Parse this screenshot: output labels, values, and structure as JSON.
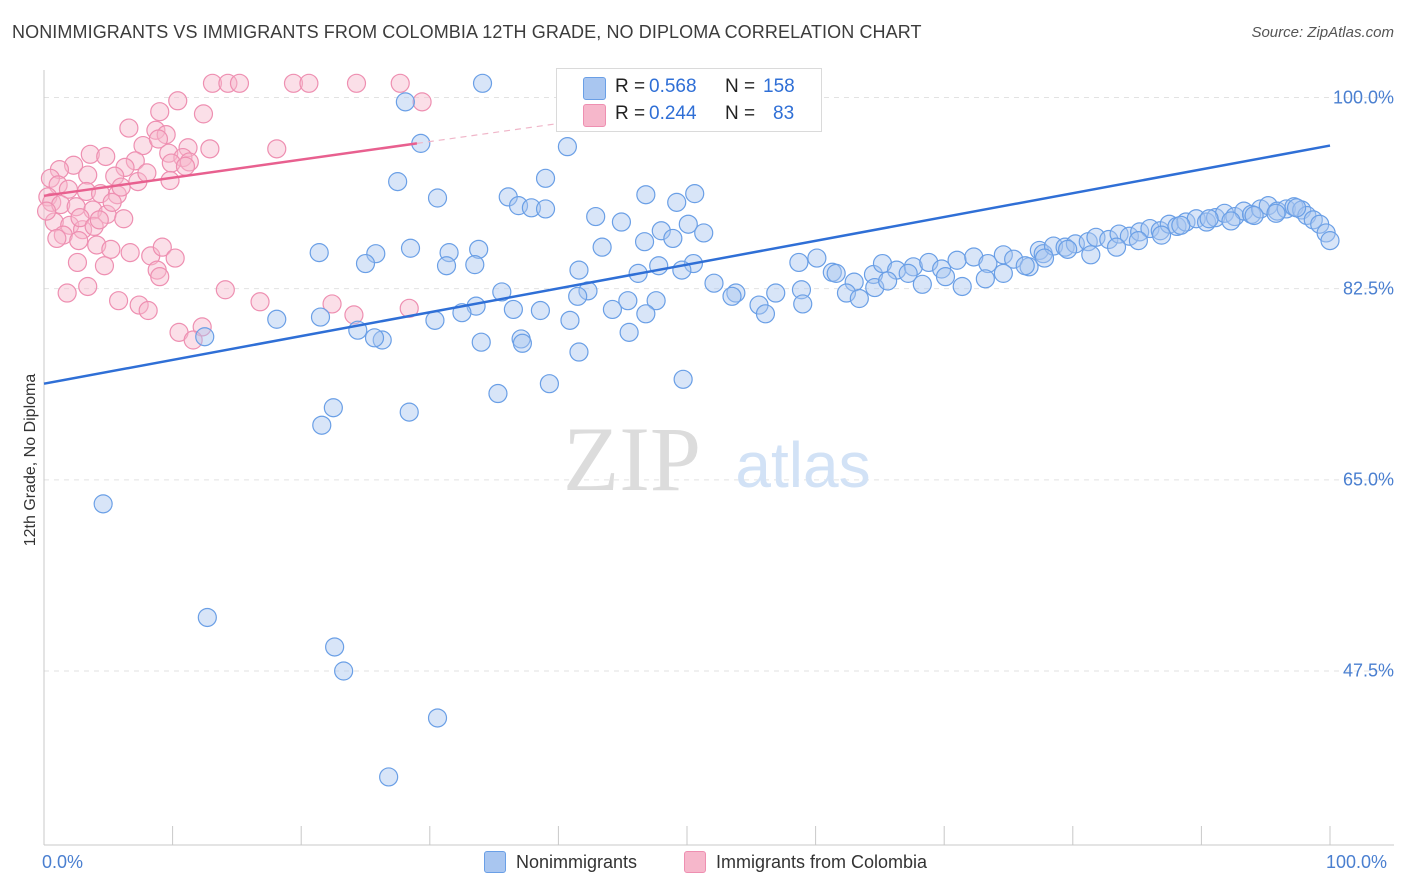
{
  "title": "NONIMMIGRANTS VS IMMIGRANTS FROM COLOMBIA 12TH GRADE, NO DIPLOMA CORRELATION CHART",
  "source": "Source: ZipAtlas.com",
  "watermark": {
    "zip": "ZIP",
    "atlas": "atlas"
  },
  "legend_stats": [
    {
      "r_label": "R =",
      "r_value": "0.568",
      "n_label": "N =",
      "n_value": "158",
      "color": "#a9c6f0"
    },
    {
      "r_label": "R =",
      "r_value": "0.244",
      "n_label": "N =",
      "n_value": "83",
      "color": "#f6b7cb"
    }
  ],
  "colors": {
    "blue": "#6a9fe6",
    "blue_line": "#2f6fd6",
    "pink": "#ee8fb1",
    "pink_line": "#e8608f",
    "tick_text": "#4a7fd0"
  },
  "chart_data": {
    "type": "scatter",
    "title": "NONIMMIGRANTS VS IMMIGRANTS FROM COLOMBIA 12TH GRADE, NO DIPLOMA CORRELATION CHART",
    "xlabel": "",
    "ylabel": "12th Grade, No Diploma",
    "xlim": [
      0,
      100
    ],
    "ylim": [
      31,
      102
    ],
    "x_tick_labels": [
      "0.0%",
      "100.0%"
    ],
    "y_ticks": [
      47.5,
      65.0,
      82.5,
      100.0
    ],
    "y_tick_labels": [
      "47.5%",
      "65.0%",
      "82.5%",
      "100.0%"
    ],
    "grid": "horizontal dashed",
    "legend_position": "bottom",
    "series": [
      {
        "name": "Nonimmigrants",
        "color": "#6a9fe6",
        "trend": {
          "x": [
            0,
            100
          ],
          "y": [
            73.8,
            95.6
          ]
        },
        "points": [
          [
            34.1,
            101.3
          ],
          [
            28.1,
            99.6
          ],
          [
            29.3,
            95.8
          ],
          [
            40.7,
            95.5
          ],
          [
            27.5,
            92.3
          ],
          [
            39.0,
            92.6
          ],
          [
            36.1,
            90.9
          ],
          [
            30.6,
            90.8
          ],
          [
            36.9,
            90.1
          ],
          [
            37.9,
            89.9
          ],
          [
            39.0,
            89.8
          ],
          [
            46.8,
            91.1
          ],
          [
            49.2,
            90.4
          ],
          [
            50.6,
            91.2
          ],
          [
            42.9,
            89.1
          ],
          [
            44.9,
            88.6
          ],
          [
            48.0,
            87.8
          ],
          [
            46.7,
            86.8
          ],
          [
            43.4,
            86.3
          ],
          [
            33.8,
            86.1
          ],
          [
            31.5,
            85.8
          ],
          [
            28.5,
            86.2
          ],
          [
            25.8,
            85.7
          ],
          [
            25.0,
            84.8
          ],
          [
            21.4,
            85.8
          ],
          [
            31.3,
            84.6
          ],
          [
            33.5,
            84.7
          ],
          [
            47.8,
            84.6
          ],
          [
            50.5,
            84.8
          ],
          [
            41.6,
            84.2
          ],
          [
            35.6,
            82.2
          ],
          [
            42.3,
            82.3
          ],
          [
            45.4,
            81.4
          ],
          [
            41.5,
            81.8
          ],
          [
            52.1,
            83.0
          ],
          [
            53.8,
            82.1
          ],
          [
            56.9,
            82.1
          ],
          [
            58.9,
            82.4
          ],
          [
            59.0,
            81.1
          ],
          [
            55.6,
            81.0
          ],
          [
            53.5,
            81.8
          ],
          [
            56.1,
            80.2
          ],
          [
            36.5,
            80.6
          ],
          [
            33.6,
            80.9
          ],
          [
            32.5,
            80.3
          ],
          [
            38.6,
            80.5
          ],
          [
            40.9,
            79.6
          ],
          [
            45.5,
            78.5
          ],
          [
            30.4,
            79.6
          ],
          [
            21.5,
            79.9
          ],
          [
            18.1,
            79.7
          ],
          [
            24.4,
            78.7
          ],
          [
            26.3,
            77.8
          ],
          [
            25.7,
            78.0
          ],
          [
            34.0,
            77.6
          ],
          [
            37.1,
            77.9
          ],
          [
            41.6,
            76.7
          ],
          [
            49.7,
            74.2
          ],
          [
            39.3,
            73.8
          ],
          [
            35.3,
            72.9
          ],
          [
            28.4,
            71.2
          ],
          [
            22.5,
            71.6
          ],
          [
            21.6,
            70.0
          ],
          [
            12.5,
            78.1
          ],
          [
            4.6,
            62.8
          ],
          [
            12.7,
            52.4
          ],
          [
            22.6,
            49.7
          ],
          [
            23.3,
            47.5
          ],
          [
            30.6,
            43.2
          ],
          [
            26.8,
            37.8
          ],
          [
            58.7,
            84.9
          ],
          [
            60.1,
            85.3
          ],
          [
            61.3,
            84.0
          ],
          [
            63.0,
            83.1
          ],
          [
            64.5,
            83.8
          ],
          [
            65.2,
            84.8
          ],
          [
            66.3,
            84.2
          ],
          [
            67.6,
            84.5
          ],
          [
            68.8,
            84.9
          ],
          [
            69.8,
            84.3
          ],
          [
            71.0,
            85.1
          ],
          [
            72.3,
            85.4
          ],
          [
            73.4,
            84.8
          ],
          [
            74.6,
            85.6
          ],
          [
            75.4,
            85.2
          ],
          [
            76.6,
            84.5
          ],
          [
            77.4,
            86.0
          ],
          [
            77.7,
            85.7
          ],
          [
            78.5,
            86.4
          ],
          [
            79.4,
            86.3
          ],
          [
            80.2,
            86.6
          ],
          [
            81.2,
            86.8
          ],
          [
            81.8,
            87.2
          ],
          [
            82.8,
            87.0
          ],
          [
            83.6,
            87.5
          ],
          [
            84.4,
            87.3
          ],
          [
            85.2,
            87.7
          ],
          [
            86.0,
            88.0
          ],
          [
            86.8,
            87.8
          ],
          [
            87.5,
            88.4
          ],
          [
            88.1,
            88.2
          ],
          [
            88.8,
            88.6
          ],
          [
            89.6,
            88.9
          ],
          [
            90.4,
            88.6
          ],
          [
            91.1,
            89.0
          ],
          [
            91.8,
            89.4
          ],
          [
            92.6,
            89.1
          ],
          [
            93.3,
            89.6
          ],
          [
            93.9,
            89.3
          ],
          [
            94.6,
            89.8
          ],
          [
            95.2,
            90.1
          ],
          [
            95.9,
            89.6
          ],
          [
            96.6,
            89.8
          ],
          [
            97.2,
            90.0
          ],
          [
            97.8,
            89.7
          ],
          [
            98.2,
            89.2
          ],
          [
            98.7,
            88.8
          ],
          [
            99.2,
            88.4
          ],
          [
            99.7,
            87.6
          ],
          [
            100.0,
            86.9
          ],
          [
            61.6,
            83.9
          ],
          [
            62.4,
            82.1
          ],
          [
            63.4,
            81.6
          ],
          [
            64.6,
            82.6
          ],
          [
            65.6,
            83.2
          ],
          [
            67.2,
            83.9
          ],
          [
            68.3,
            82.9
          ],
          [
            70.1,
            83.6
          ],
          [
            71.4,
            82.7
          ],
          [
            73.2,
            83.4
          ],
          [
            74.6,
            83.9
          ],
          [
            76.3,
            84.6
          ],
          [
            77.8,
            85.3
          ],
          [
            79.6,
            86.1
          ],
          [
            81.4,
            85.6
          ],
          [
            83.4,
            86.3
          ],
          [
            85.1,
            86.9
          ],
          [
            86.9,
            87.4
          ],
          [
            88.4,
            88.3
          ],
          [
            90.6,
            88.9
          ],
          [
            92.3,
            88.7
          ],
          [
            94.1,
            89.2
          ],
          [
            95.8,
            89.4
          ],
          [
            97.4,
            89.9
          ],
          [
            50.1,
            88.4
          ],
          [
            48.9,
            87.1
          ],
          [
            51.3,
            87.6
          ],
          [
            47.6,
            81.4
          ],
          [
            46.8,
            80.2
          ],
          [
            37.2,
            77.5
          ],
          [
            44.2,
            80.6
          ],
          [
            49.6,
            84.2
          ],
          [
            46.2,
            83.9
          ]
        ]
      },
      {
        "name": "Immigrants from Colombia",
        "color": "#ee8fb1",
        "trend": {
          "x": [
            0,
            29
          ],
          "y": [
            91.0,
            95.8
          ]
        },
        "points": [
          [
            13.1,
            101.3
          ],
          [
            14.3,
            101.3
          ],
          [
            15.2,
            101.3
          ],
          [
            19.4,
            101.3
          ],
          [
            20.6,
            101.3
          ],
          [
            24.3,
            101.3
          ],
          [
            27.7,
            101.3
          ],
          [
            10.4,
            99.7
          ],
          [
            29.4,
            99.6
          ],
          [
            9.0,
            98.7
          ],
          [
            12.4,
            98.5
          ],
          [
            6.6,
            97.2
          ],
          [
            8.7,
            97.0
          ],
          [
            9.5,
            96.6
          ],
          [
            7.7,
            95.6
          ],
          [
            11.2,
            95.4
          ],
          [
            12.9,
            95.3
          ],
          [
            18.1,
            95.3
          ],
          [
            9.7,
            94.9
          ],
          [
            3.6,
            94.8
          ],
          [
            4.8,
            94.6
          ],
          [
            10.8,
            94.5
          ],
          [
            11.3,
            94.1
          ],
          [
            7.1,
            94.2
          ],
          [
            9.9,
            94.0
          ],
          [
            6.3,
            93.6
          ],
          [
            2.3,
            93.8
          ],
          [
            1.2,
            93.4
          ],
          [
            3.4,
            92.9
          ],
          [
            5.5,
            92.8
          ],
          [
            0.5,
            92.6
          ],
          [
            1.1,
            92.0
          ],
          [
            1.9,
            91.6
          ],
          [
            3.3,
            91.4
          ],
          [
            4.4,
            91.2
          ],
          [
            5.7,
            91.1
          ],
          [
            0.3,
            90.9
          ],
          [
            0.6,
            90.4
          ],
          [
            1.3,
            90.2
          ],
          [
            2.5,
            90.0
          ],
          [
            3.8,
            89.7
          ],
          [
            4.9,
            89.3
          ],
          [
            6.2,
            88.9
          ],
          [
            0.8,
            88.6
          ],
          [
            2.0,
            88.3
          ],
          [
            3.0,
            87.9
          ],
          [
            1.5,
            87.4
          ],
          [
            2.7,
            86.9
          ],
          [
            4.1,
            86.5
          ],
          [
            5.2,
            86.1
          ],
          [
            6.7,
            85.8
          ],
          [
            8.3,
            85.5
          ],
          [
            9.2,
            86.3
          ],
          [
            10.2,
            85.3
          ],
          [
            8.8,
            84.2
          ],
          [
            9.0,
            83.6
          ],
          [
            2.6,
            84.9
          ],
          [
            4.7,
            84.6
          ],
          [
            3.4,
            82.7
          ],
          [
            1.8,
            82.1
          ],
          [
            5.8,
            81.4
          ],
          [
            7.4,
            81.0
          ],
          [
            8.1,
            80.5
          ],
          [
            14.1,
            82.4
          ],
          [
            16.8,
            81.3
          ],
          [
            22.4,
            81.1
          ],
          [
            24.1,
            80.1
          ],
          [
            28.4,
            80.7
          ],
          [
            12.3,
            79.0
          ],
          [
            10.5,
            78.5
          ],
          [
            11.6,
            77.8
          ],
          [
            1.0,
            87.1
          ],
          [
            0.2,
            89.6
          ],
          [
            2.8,
            89.0
          ],
          [
            3.9,
            88.2
          ],
          [
            4.3,
            88.8
          ],
          [
            5.3,
            90.4
          ],
          [
            6.0,
            91.8
          ],
          [
            7.3,
            92.3
          ],
          [
            8.0,
            93.1
          ],
          [
            9.8,
            92.4
          ],
          [
            11.0,
            93.7
          ],
          [
            8.9,
            96.2
          ]
        ]
      }
    ]
  },
  "x_ticks_labels": {
    "left": "0.0%",
    "right": "100.0%"
  },
  "bottom_legend": [
    {
      "label": "Nonimmigrants",
      "color": "#a9c6f0",
      "border": "#6a9fe6"
    },
    {
      "label": "Immigrants from Colombia",
      "color": "#f6b7cb",
      "border": "#ee8fb1"
    }
  ]
}
